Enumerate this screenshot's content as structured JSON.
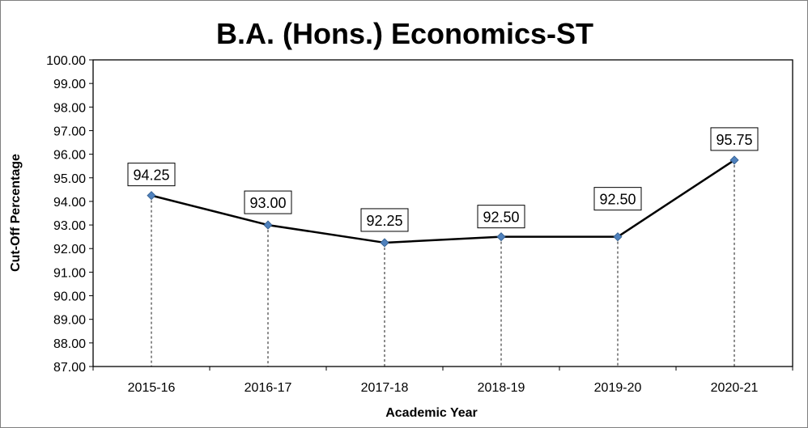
{
  "chart_data": {
    "type": "line",
    "title": "B.A. (Hons.) Economics-ST",
    "xlabel": "Academic Year",
    "ylabel": "Cut-Off Percentage",
    "categories": [
      "2015-16",
      "2016-17",
      "2017-18",
      "2018-19",
      "2019-20",
      "2020-21"
    ],
    "values": [
      94.25,
      93.0,
      92.25,
      92.5,
      92.5,
      95.75
    ],
    "data_labels": [
      "94.25",
      "93.00",
      "92.25",
      "92.50",
      "92.50",
      "95.75"
    ],
    "ylim": [
      87,
      100
    ],
    "yticks": [
      "87.00",
      "88.00",
      "89.00",
      "90.00",
      "91.00",
      "92.00",
      "93.00",
      "94.00",
      "95.00",
      "96.00",
      "97.00",
      "98.00",
      "99.00",
      "100.00"
    ],
    "grid": false,
    "drop_lines": true,
    "legend": "none",
    "colors": {
      "line": "#000000",
      "marker": "#4f81bd",
      "marker_edge": "#2e5a8a"
    }
  }
}
